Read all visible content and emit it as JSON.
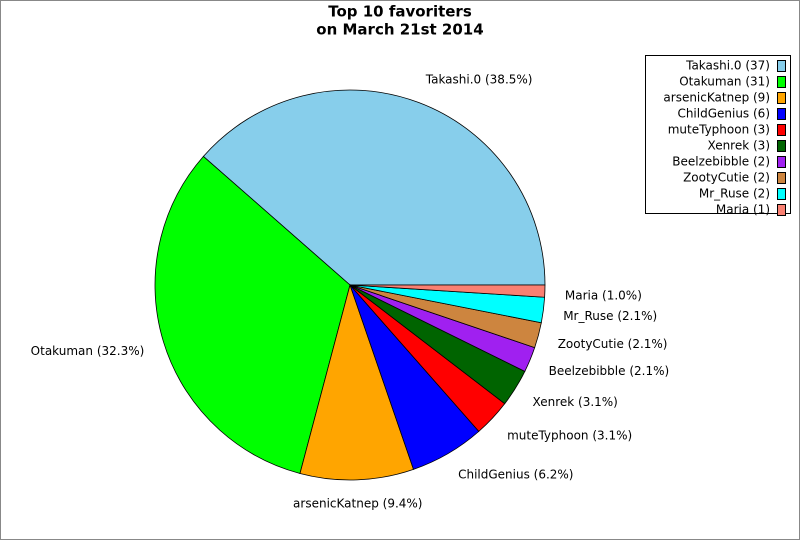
{
  "chart_data": {
    "type": "pie",
    "title": "Top 10 favoriters",
    "subtitle": "on March 21st 2014",
    "categories": [
      "Takashi.0 (37)",
      "Otakuman (31)",
      "arsenicKatnep (9)",
      "ChildGenius (6)",
      "muteTyphoon (3)",
      "Xenrek (3)",
      "Beelzebibble (2)",
      "ZootyCutie (2)",
      "Mr_Ruse (2)",
      "Maria (1)"
    ],
    "values": [
      38.5,
      32.3,
      9.4,
      6.2,
      3.1,
      3.1,
      2.1,
      2.1,
      2.1,
      1.0
    ],
    "value_labels": [
      "Takashi.0 (38.5%)",
      "Otakuman (32.3%)",
      "arsenicKatnep (9.4%)",
      "ChildGenius (6.2%)",
      "muteTyphoon (3.1%)",
      "Xenrek (3.1%)",
      "Beelzebibble (2.1%)",
      "ZootyCutie (2.1%)",
      "Mr_Ruse (2.1%)",
      "Maria (1.0%)"
    ],
    "colors": [
      "#87ceeb",
      "#00ff00",
      "#ffa500",
      "#0000ff",
      "#ff0000",
      "#006400",
      "#a020f0",
      "#cd853f",
      "#00ffff",
      "#fa8072"
    ],
    "legend_position": "upper right"
  }
}
